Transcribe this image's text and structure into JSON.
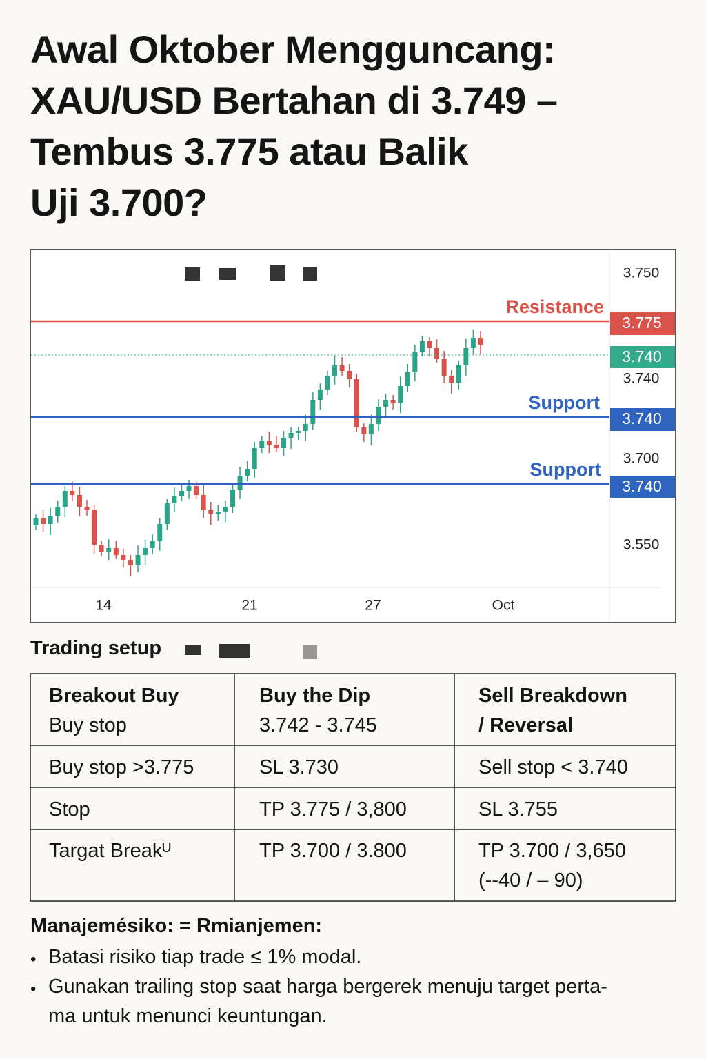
{
  "header": {
    "title_lines": [
      "Awal Oktober Mengguncang:",
      "XAU/USD Bertahan di 3.749 –",
      "Tembus 3.775 atau Balik",
      "Uji 3.700?"
    ]
  },
  "chart": {
    "y_axis_labels": [
      "3.750",
      "3.740",
      "3.700",
      "3.550"
    ],
    "x_axis_labels": [
      "14",
      "21",
      "27",
      "Oct"
    ],
    "levels": [
      {
        "name": "Resistance",
        "tag": "3.775"
      },
      {
        "tag": "3.740"
      },
      {
        "name": "Support",
        "tag": "3.740"
      },
      {
        "name": "Support",
        "tag": "3.740"
      }
    ]
  },
  "trading_setup": {
    "heading": "Trading setup",
    "table": {
      "header": [
        [
          "Breakout Buy",
          "Buy stop"
        ],
        [
          "Buy the Dip",
          "3.742 - 3.745"
        ],
        [
          "Sell Breakdown",
          "/ Reversal"
        ]
      ],
      "rows": [
        [
          "Buy stop >3.775",
          "SL 3.730",
          "Sell stop < 3.740"
        ],
        [
          "Stop",
          "TP 3.775 / 3,800",
          "SL 3.755"
        ],
        [
          "Targat Breakᵁ",
          "TP 3.700 / 3.800",
          [
            "TP 3.700 / 3,650",
            "(--40 / – 90)"
          ]
        ]
      ]
    }
  },
  "risk": {
    "heading": "Manajemésiko: = Rmianjemen:",
    "items": [
      [
        "Batasi risiko tiap trade ≤ 1% modal."
      ],
      [
        "Gunakan trailing stop saat harga bergerek menuju target perta-",
        "ma untuk menunci keuntungan."
      ]
    ]
  }
}
